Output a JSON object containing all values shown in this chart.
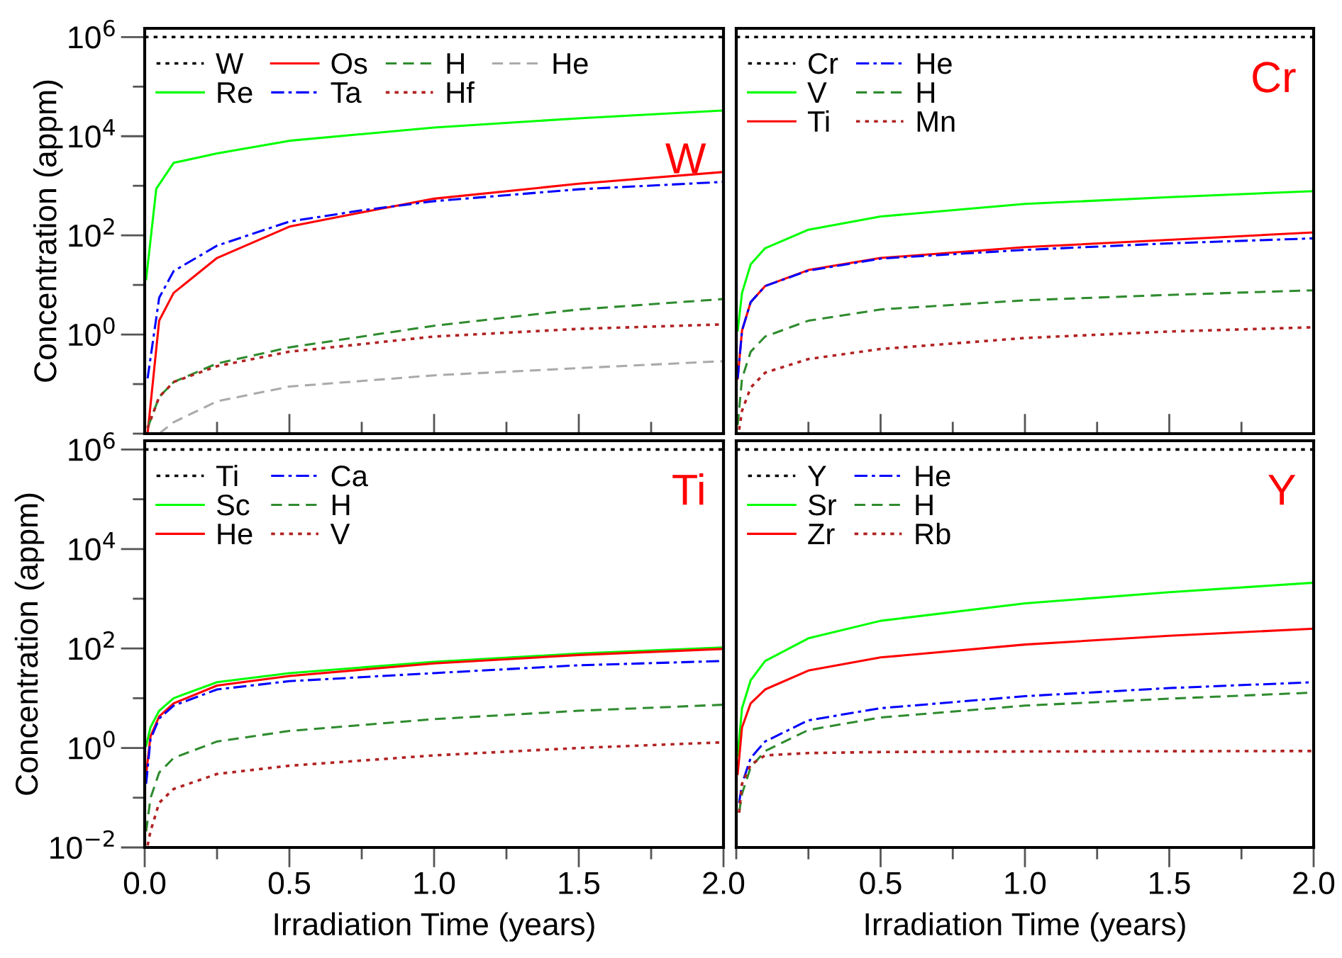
{
  "chart_data": [
    {
      "type": "line",
      "title": "W",
      "ylabel": "Concentration (appm)",
      "log": "y",
      "legend": "top left",
      "tick_labels": "y",
      "grid": false,
      "xlim": [
        0,
        2
      ],
      "xticks": [
        {
          "value": 0,
          "label": null
        },
        {
          "value": 0.25,
          "label": null
        },
        {
          "value": 0.5,
          "label": null
        },
        {
          "value": 0.75,
          "label": null
        },
        {
          "value": 1,
          "label": null
        },
        {
          "value": 1.25,
          "label": null
        },
        {
          "value": 1.5,
          "label": null
        },
        {
          "value": 1.75,
          "label": null
        },
        {
          "value": 2,
          "label": null
        }
      ],
      "ylim": [
        0.01,
        1500000
      ],
      "yticks": [
        {
          "value": 0.01,
          "label": null
        },
        {
          "value": 0.1,
          "label": null
        },
        {
          "value": 1,
          "label": "10$^{0}$"
        },
        {
          "value": 10,
          "label": null
        },
        {
          "value": 100,
          "label": "10$^{2}$"
        },
        {
          "value": 1000,
          "label": null
        },
        {
          "value": 10000,
          "label": "10$^{4}$"
        },
        {
          "value": 100000,
          "label": null
        },
        {
          "value": 1000000,
          "label": "10$^{6}$"
        }
      ],
      "series": [
        {
          "name": "W",
          "color": "#000000",
          "line_style": "dotted",
          "x": [
            0,
            2
          ],
          "values": [
            1000000,
            1000000
          ]
        },
        {
          "name": "Re",
          "color": "#00ff00",
          "line_style": "solid",
          "x": [
            0.005,
            0.04,
            0.1,
            0.25,
            0.5,
            1,
            1.5,
            2
          ],
          "values": [
            13,
            870,
            2900,
            4500,
            8100,
            15000,
            23000,
            33000
          ]
        },
        {
          "name": "Os",
          "color": "#ff0000",
          "line_style": "solid",
          "x": [
            0.01,
            0.05,
            0.1,
            0.25,
            0.5,
            0.75,
            1,
            1.5,
            2
          ],
          "values": [
            0.01,
            1.9,
            6.9,
            35,
            150,
            290,
            550,
            1100,
            1900
          ]
        },
        {
          "name": "Ta",
          "color": "#0000ff",
          "line_style": "dashdot",
          "x": [
            0.01,
            0.05,
            0.1,
            0.25,
            0.5,
            0.75,
            1,
            1.5,
            2
          ],
          "values": [
            0.13,
            5.5,
            19,
            62,
            190,
            320,
            490,
            850,
            1200
          ]
        },
        {
          "name": "H",
          "color": "#2e8b2e",
          "line_style": "dashed",
          "x": [
            0.01,
            0.05,
            0.1,
            0.25,
            0.5,
            1,
            1.5,
            2
          ],
          "values": [
            0.013,
            0.055,
            0.11,
            0.26,
            0.55,
            1.5,
            3.2,
            5.2
          ]
        },
        {
          "name": "Hf",
          "color": "#b22222",
          "line_style": "dotted",
          "x": [
            0.01,
            0.05,
            0.1,
            0.25,
            0.5,
            1,
            1.5,
            2
          ],
          "values": [
            0.013,
            0.055,
            0.11,
            0.23,
            0.45,
            0.91,
            1.3,
            1.6
          ]
        },
        {
          "name": "He",
          "color": "#aaaaaa",
          "line_style": "dashed",
          "x": [
            0.05,
            0.1,
            0.25,
            0.5,
            1,
            1.5,
            2
          ],
          "values": [
            0.01,
            0.017,
            0.045,
            0.089,
            0.15,
            0.21,
            0.29
          ]
        }
      ]
    },
    {
      "type": "line",
      "title": "Cr",
      "log": "y",
      "legend": "top left",
      "tick_labels": false,
      "grid": false,
      "xlim": [
        0,
        2
      ],
      "xticks": [
        {
          "value": 0,
          "label": null
        },
        {
          "value": 0.25,
          "label": null
        },
        {
          "value": 0.5,
          "label": null
        },
        {
          "value": 0.75,
          "label": null
        },
        {
          "value": 1,
          "label": null
        },
        {
          "value": 1.25,
          "label": null
        },
        {
          "value": 1.5,
          "label": null
        },
        {
          "value": 1.75,
          "label": null
        },
        {
          "value": 2,
          "label": null
        }
      ],
      "ylim": [
        0.01,
        1500000
      ],
      "yticks": [
        {
          "value": 0.01,
          "label": null
        },
        {
          "value": 1,
          "label": null
        },
        {
          "value": 100,
          "label": null
        },
        {
          "value": 10000,
          "label": null
        },
        {
          "value": 1000000,
          "label": null
        }
      ],
      "x": [
        0.005,
        0.02,
        0.05,
        0.1,
        0.25,
        0.5,
        1,
        1.5,
        2
      ],
      "series": [
        {
          "name": "Cr",
          "color": "#000000",
          "line_style": "dotted",
          "x": [
            0,
            2
          ],
          "values": [
            1000000,
            1000000
          ]
        },
        {
          "name": "V",
          "color": "#00ff00",
          "line_style": "solid",
          "values": [
            1.2,
            6.9,
            26,
            55,
            130,
            240,
            430,
            590,
            780
          ]
        },
        {
          "name": "Ti",
          "color": "#ff0000",
          "line_style": "solid",
          "values": [
            0.13,
            1.2,
            4.5,
            9.5,
            20,
            35,
            58,
            81,
            115
          ]
        },
        {
          "name": "He",
          "color": "#0000ff",
          "line_style": "dashdot",
          "values": [
            0.13,
            1.2,
            4.5,
            9.5,
            19.5,
            34,
            51,
            69,
            87
          ]
        },
        {
          "name": "H",
          "color": "#2e8b2e",
          "line_style": "dashed",
          "values": [
            0.015,
            0.13,
            0.45,
            0.91,
            1.9,
            3.2,
            4.9,
            6.3,
            7.8
          ]
        },
        {
          "name": "Mn",
          "color": "#b22222",
          "line_style": "dotted",
          "x": [
            0.01,
            0.02,
            0.05,
            0.1,
            0.25,
            0.5,
            1,
            1.5,
            2
          ],
          "values": [
            0.012,
            0.029,
            0.085,
            0.17,
            0.32,
            0.51,
            0.85,
            1.15,
            1.4
          ]
        }
      ]
    },
    {
      "type": "line",
      "title": "Ti",
      "xlabel": "Irradiation Time (years)",
      "ylabel": "Concentration (appm)",
      "log": "y",
      "legend": "top left",
      "grid": false,
      "xlim": [
        0,
        2
      ],
      "xticks": [
        {
          "value": 0,
          "label": "0.0"
        },
        {
          "value": 0.25,
          "label": null
        },
        {
          "value": 0.5,
          "label": "0.5"
        },
        {
          "value": 0.75,
          "label": null
        },
        {
          "value": 1,
          "label": "1.0"
        },
        {
          "value": 1.25,
          "label": null
        },
        {
          "value": 1.5,
          "label": "1.5"
        },
        {
          "value": 1.75,
          "label": null
        },
        {
          "value": 2,
          "label": "2.0"
        }
      ],
      "ylim": [
        0.01,
        1500000
      ],
      "yticks": [
        {
          "value": 0.01,
          "label": "10$^{−2}$"
        },
        {
          "value": 0.1,
          "label": null
        },
        {
          "value": 1,
          "label": "10$^{0}$"
        },
        {
          "value": 10,
          "label": null
        },
        {
          "value": 100,
          "label": "10$^{2}$"
        },
        {
          "value": 1000,
          "label": null
        },
        {
          "value": 10000,
          "label": "10$^{4}$"
        },
        {
          "value": 100000,
          "label": null
        },
        {
          "value": 1000000,
          "label": "10$^{6}$"
        }
      ],
      "x": [
        0.005,
        0.02,
        0.05,
        0.1,
        0.25,
        0.5,
        1,
        1.5,
        2
      ],
      "series": [
        {
          "name": "Ti",
          "color": "#000000",
          "line_style": "dotted",
          "x": [
            0,
            2
          ],
          "values": [
            1000000,
            1000000
          ]
        },
        {
          "name": "Sc",
          "color": "#00ff00",
          "line_style": "solid",
          "values": [
            1.1,
            2.6,
            5.6,
            10,
            21,
            32,
            54,
            79,
            105
          ]
        },
        {
          "name": "He",
          "color": "#ff0000",
          "line_style": "solid",
          "values": [
            0.3,
            1.7,
            4.3,
            7.9,
            18,
            28,
            50,
            74,
            98
          ]
        },
        {
          "name": "Ca",
          "color": "#0000ff",
          "line_style": "dashdot",
          "values": [
            0.19,
            1.5,
            3.9,
            7.1,
            15,
            22,
            32,
            46,
            56
          ]
        },
        {
          "name": "H",
          "color": "#2e8b2e",
          "line_style": "dashed",
          "values": [
            0.021,
            0.098,
            0.32,
            0.63,
            1.35,
            2.2,
            3.8,
            5.6,
            7.4
          ]
        },
        {
          "name": "V",
          "color": "#b22222",
          "line_style": "dotted",
          "x": [
            0.01,
            0.02,
            0.05,
            0.1,
            0.25,
            0.5,
            1,
            1.5,
            2
          ],
          "values": [
            0.011,
            0.021,
            0.079,
            0.15,
            0.3,
            0.44,
            0.71,
            1.0,
            1.3
          ]
        }
      ]
    },
    {
      "type": "line",
      "title": "Y",
      "xlabel": "Irradiation Time (years)",
      "log": "y",
      "legend": "top left",
      "tick_labels": "x",
      "grid": false,
      "xlim": [
        0,
        2
      ],
      "xticks": [
        {
          "value": 0,
          "label": null
        },
        {
          "value": 0.25,
          "label": null
        },
        {
          "value": 0.5,
          "label": "0.5"
        },
        {
          "value": 0.75,
          "label": null
        },
        {
          "value": 1,
          "label": "1.0"
        },
        {
          "value": 1.25,
          "label": null
        },
        {
          "value": 1.5,
          "label": "1.5"
        },
        {
          "value": 1.75,
          "label": null
        },
        {
          "value": 2,
          "label": "2.0"
        }
      ],
      "ylim": [
        0.01,
        1500000
      ],
      "yticks": [
        {
          "value": 0.01,
          "label": null
        },
        {
          "value": 1,
          "label": null
        },
        {
          "value": 100,
          "label": null
        },
        {
          "value": 10000,
          "label": null
        },
        {
          "value": 1000000,
          "label": null
        }
      ],
      "x": [
        0.005,
        0.02,
        0.05,
        0.1,
        0.25,
        0.5,
        1,
        1.5,
        2
      ],
      "series": [
        {
          "name": "Y",
          "color": "#000000",
          "line_style": "dotted",
          "x": [
            0,
            2
          ],
          "values": [
            1000000,
            1000000
          ]
        },
        {
          "name": "Sr",
          "color": "#00ff00",
          "line_style": "solid",
          "values": [
            0.71,
            6.3,
            23,
            56,
            160,
            360,
            810,
            1350,
            2100
          ]
        },
        {
          "name": "Zr",
          "color": "#ff0000",
          "line_style": "solid",
          "values": [
            0.3,
            2.6,
            7.9,
            15,
            36,
            66,
            120,
            180,
            250
          ]
        },
        {
          "name": "He",
          "color": "#0000ff",
          "line_style": "dashdot",
          "x": [
            0.01,
            0.02,
            0.05,
            0.1,
            0.25,
            0.5,
            1,
            1.5,
            2
          ],
          "values": [
            0.079,
            0.19,
            0.63,
            1.35,
            3.6,
            6.3,
            11,
            16,
            21
          ]
        },
        {
          "name": "H",
          "color": "#2e8b2e",
          "line_style": "dashed",
          "x": [
            0.01,
            0.02,
            0.05,
            0.1,
            0.25,
            0.5,
            1,
            1.5,
            2
          ],
          "values": [
            0.05,
            0.12,
            0.41,
            0.87,
            2.3,
            4.1,
            7.1,
            9.8,
            13
          ]
        },
        {
          "name": "Rb",
          "color": "#b22222",
          "line_style": "dotted",
          "x": [
            0.01,
            0.02,
            0.05,
            0.1,
            0.25,
            0.5,
            1,
            1.5,
            2
          ],
          "values": [
            0.05,
            0.19,
            0.46,
            0.71,
            0.79,
            0.83,
            0.85,
            0.86,
            0.87
          ]
        }
      ]
    }
  ]
}
